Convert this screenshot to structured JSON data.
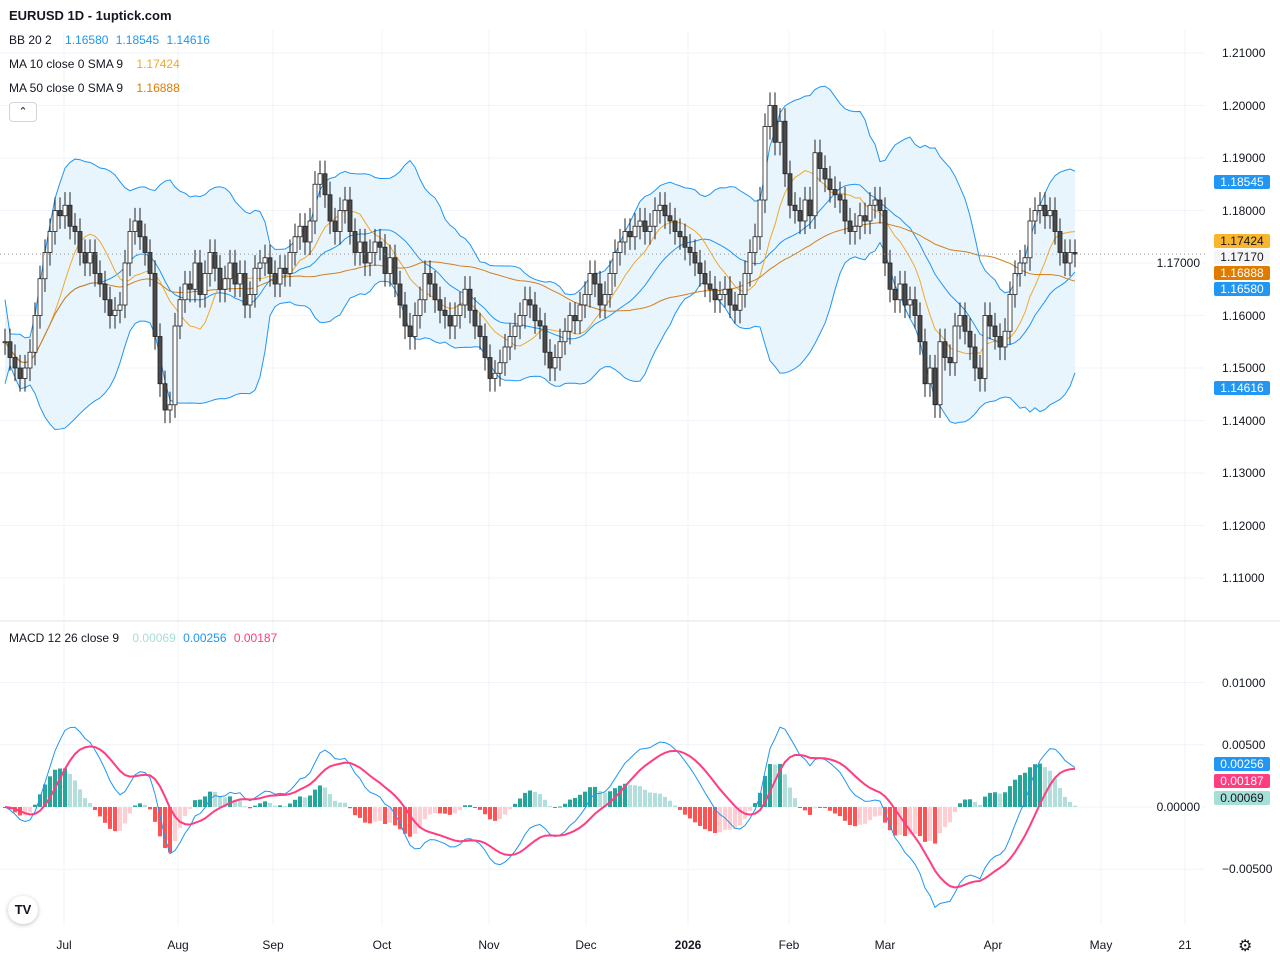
{
  "header": {
    "title": "EURUSD 1D - 1uptick.com"
  },
  "legend": {
    "bb": {
      "label": "BB 20 2",
      "values": [
        "1.16580",
        "1.18545",
        "1.14616"
      ],
      "color": "#2196f3"
    },
    "ma10": {
      "label": "MA 10 close 0 SMA 9",
      "value": "1.17424",
      "color": "#f0a830"
    },
    "ma50": {
      "label": "MA 50 close 0 SMA 9",
      "value": "1.16888",
      "color": "#e07b00"
    },
    "macd": {
      "label": "MACD 12 26 close 9",
      "values": [
        "0.00069",
        "0.00256",
        "0.00187"
      ],
      "colors": [
        "#a5dfd5",
        "#2196f3",
        "#ff3d7f"
      ]
    },
    "collapse_icon": "chevron-up-icon"
  },
  "price_axis": {
    "ticks": [
      "1.21000",
      "1.20000",
      "1.19000",
      "1.18000",
      "1.17000",
      "1.16000",
      "1.15000",
      "1.14000",
      "1.13000",
      "1.12000",
      "1.11000"
    ],
    "tags": [
      {
        "text": "1.18545",
        "value": 1.18545,
        "color": "#2196f3"
      },
      {
        "text": "1.17424",
        "value": 1.17424,
        "color": "#f9b52b"
      },
      {
        "text": "1.17170",
        "value": 1.1717,
        "color": "#f5f5f5"
      },
      {
        "text": "1.16888",
        "value": 1.16888,
        "color": "#e07b00"
      },
      {
        "text": "1.16580",
        "value": 1.1658,
        "color": "#2196f3"
      },
      {
        "text": "1.14616",
        "value": 1.14616,
        "color": "#2196f3"
      }
    ]
  },
  "macd_axis": {
    "ticks": [
      "0.01000",
      "0.00500",
      "0.00000",
      "−0.00500"
    ],
    "tags": [
      {
        "text": "0.00256",
        "color": "#2196f3"
      },
      {
        "text": "0.00187",
        "color": "#ff3d7f"
      },
      {
        "text": "0.00069",
        "color": "#a5dfd5"
      }
    ]
  },
  "time_axis": {
    "labels": [
      "Jul",
      "Aug",
      "Sep",
      "Oct",
      "Nov",
      "Dec",
      "2026",
      "Feb",
      "Mar",
      "Apr",
      "May",
      "21"
    ]
  },
  "settings_icon": "gear-icon",
  "logo": "TV",
  "chart_data": {
    "type": "candlestick",
    "symbol": "EURUSD",
    "interval": "1D",
    "ylim": [
      1.105,
      1.215
    ],
    "macd_ylim": [
      -0.0075,
      0.0125
    ],
    "grid": true,
    "colors": {
      "up": "#ffffff",
      "down": "#4a4a4a",
      "bb": "#2196f3",
      "bb_fill": "#e3f2fd",
      "ma10": "#f0a830",
      "ma50": "#d08020",
      "macd": "#2196f3",
      "signal": "#ff3d7f",
      "hist_up": "#26a69a",
      "hist_up_weak": "#b2dfdb",
      "hist_down": "#ff5252",
      "hist_down_weak": "#ffcdd2"
    },
    "closes": [
      1.155,
      1.152,
      1.15,
      1.148,
      1.15,
      1.153,
      1.16,
      1.167,
      1.172,
      1.176,
      1.18,
      1.179,
      1.181,
      1.177,
      1.176,
      1.172,
      1.17,
      1.172,
      1.168,
      1.166,
      1.163,
      1.16,
      1.161,
      1.162,
      1.17,
      1.176,
      1.178,
      1.175,
      1.172,
      1.168,
      1.156,
      1.147,
      1.142,
      1.143,
      1.158,
      1.163,
      1.166,
      1.165,
      1.17,
      1.164,
      1.168,
      1.172,
      1.169,
      1.165,
      1.167,
      1.17,
      1.166,
      1.168,
      1.162,
      1.164,
      1.169,
      1.17,
      1.171,
      1.168,
      1.166,
      1.169,
      1.168,
      1.172,
      1.175,
      1.177,
      1.174,
      1.178,
      1.185,
      1.187,
      1.183,
      1.178,
      1.176,
      1.18,
      1.182,
      1.176,
      1.172,
      1.174,
      1.17,
      1.172,
      1.174,
      1.173,
      1.168,
      1.171,
      1.166,
      1.162,
      1.158,
      1.156,
      1.16,
      1.163,
      1.168,
      1.166,
      1.163,
      1.161,
      1.16,
      1.158,
      1.16,
      1.162,
      1.165,
      1.161,
      1.158,
      1.156,
      1.152,
      1.148,
      1.149,
      1.151,
      1.154,
      1.156,
      1.158,
      1.16,
      1.163,
      1.162,
      1.159,
      1.158,
      1.153,
      1.15,
      1.152,
      1.155,
      1.157,
      1.16,
      1.159,
      1.162,
      1.164,
      1.168,
      1.166,
      1.162,
      1.164,
      1.168,
      1.172,
      1.174,
      1.176,
      1.175,
      1.177,
      1.178,
      1.176,
      1.177,
      1.18,
      1.181,
      1.179,
      1.178,
      1.176,
      1.175,
      1.173,
      1.172,
      1.17,
      1.168,
      1.166,
      1.165,
      1.163,
      1.164,
      1.165,
      1.162,
      1.161,
      1.164,
      1.168,
      1.172,
      1.175,
      1.182,
      1.196,
      1.2,
      1.193,
      1.197,
      1.187,
      1.181,
      1.18,
      1.178,
      1.182,
      1.179,
      1.191,
      1.188,
      1.186,
      1.184,
      1.183,
      1.182,
      1.178,
      1.176,
      1.177,
      1.179,
      1.178,
      1.181,
      1.182,
      1.18,
      1.17,
      1.165,
      1.163,
      1.166,
      1.162,
      1.163,
      1.16,
      1.155,
      1.147,
      1.15,
      1.143,
      1.155,
      1.152,
      1.151,
      1.158,
      1.16,
      1.157,
      1.154,
      1.15,
      1.148,
      1.16,
      1.158,
      1.156,
      1.154,
      1.157,
      1.164,
      1.168,
      1.17,
      1.171,
      1.178,
      1.18,
      1.181,
      1.179,
      1.18,
      1.176,
      1.172,
      1.17,
      1.172,
      1.1717
    ]
  }
}
